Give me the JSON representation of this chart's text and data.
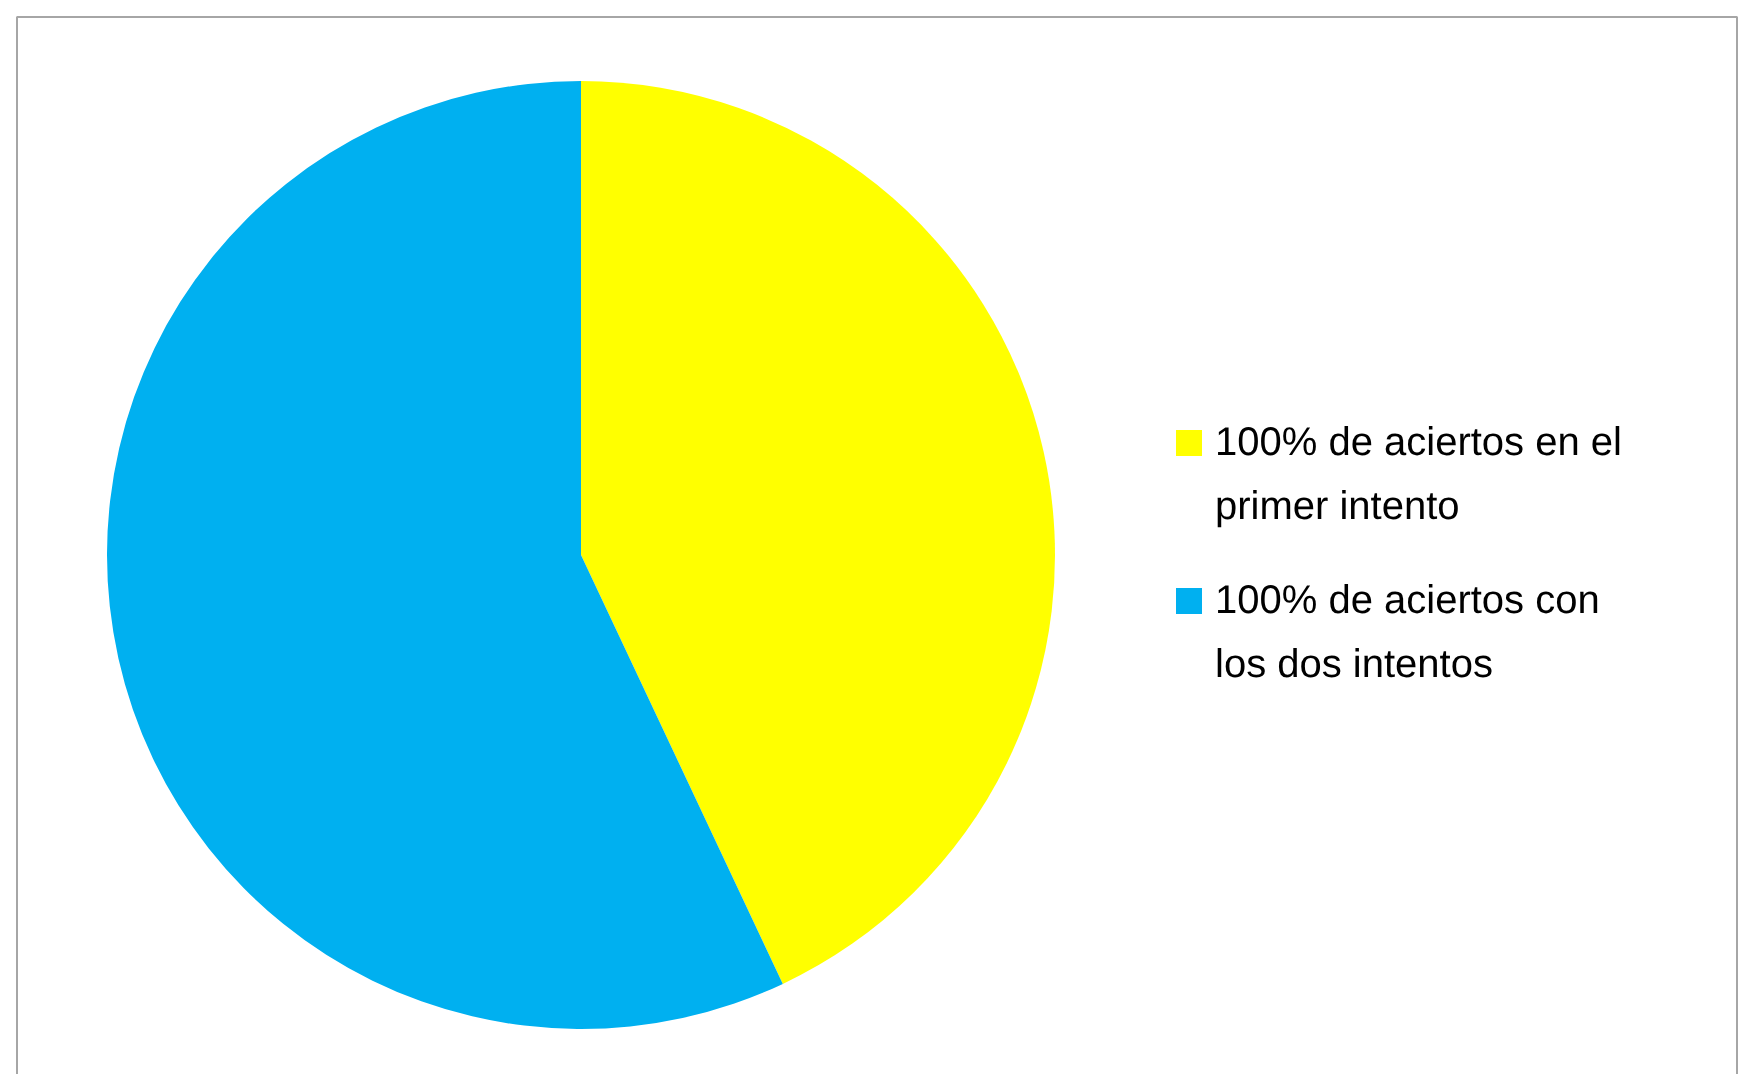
{
  "chart_data": {
    "type": "pie",
    "categories": [
      "100% de aciertos en el primer intento",
      "100% de aciertos con los dos intentos"
    ],
    "values": [
      43,
      57
    ],
    "colors": [
      "#ffff00",
      "#00b0f0"
    ],
    "legend": "right"
  }
}
